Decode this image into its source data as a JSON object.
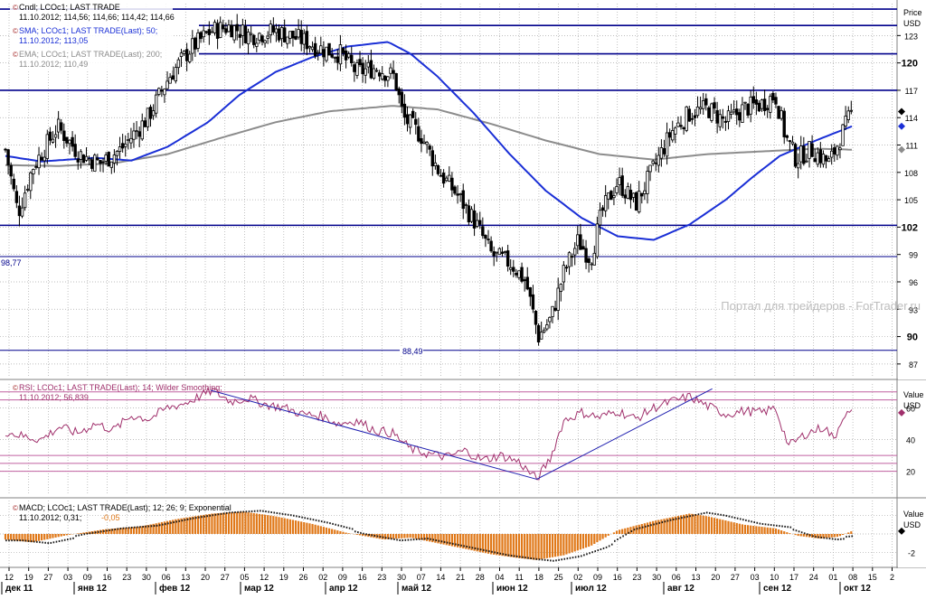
{
  "colors": {
    "background": "#ffffff",
    "grid": "#a8a8a8",
    "candle_up": "#000000",
    "candle_down": "#000000",
    "sma": "#1a2fd6",
    "ema": "#8c8c8c",
    "level_line": "#00008b",
    "rsi": "#a0306c",
    "rsi_level": "#c060a0",
    "rsi_trend": "#2020b0",
    "macd_hist": "#e07818",
    "macd_hist_dark": "#1a1a1a",
    "macd_signal": "#e07818",
    "watermark": "#bdbdbd"
  },
  "price_panel": {
    "legend_cndl": "Cndl; LCOc1; LAST TRADE",
    "legend_cndl_values": "11.10.2012; 114,56; 114,66; 114,42; 114,66",
    "legend_sma": "SMA; LCOc1; LAST TRADE(Last); 50;",
    "legend_sma_values": "11.10.2012; 113,05",
    "legend_ema": "EMA; LCOc1; LAST TRADE(Last); 200;",
    "legend_ema_values": "11.10.2012; 110,49",
    "axis_title": "Price",
    "axis_unit": "USD",
    "level_label_left": "98,77",
    "level_label_bottom": "88,49",
    "watermark": "Портал для трейдеров - ForTrader.ru"
  },
  "rsi_panel": {
    "legend": "RSI; LCOc1; LAST TRADE(Last); 14; Wilder Smoothing;",
    "legend_values": "11.10.2012; 56,839",
    "axis_title": "Value",
    "axis_unit": "USD",
    "ticks": [
      "60",
      "40",
      "20"
    ]
  },
  "macd_panel": {
    "legend": "MACD; LCOc1; LAST TRADE(Last); 12; 26; 9; Exponential",
    "legend_value_a": "11.10.2012; 0,31;",
    "legend_value_b": "-0,05",
    "axis_title": "Value",
    "axis_unit": "USD",
    "ticks": [
      "-2"
    ]
  },
  "chart_data": [
    {
      "type": "candlestick",
      "title": "LCOc1",
      "ylabel": "Price USD",
      "y_ticks": [
        87,
        90,
        93,
        96,
        99,
        102,
        105,
        108,
        111,
        114,
        117,
        120,
        123
      ],
      "y_ticks_bold": [
        90,
        102,
        120
      ],
      "ylim": [
        85.5,
        126.5
      ],
      "x_day_ticks": [
        "12",
        "19",
        "27",
        "03",
        "09",
        "16",
        "23",
        "30",
        "06",
        "13",
        "20",
        "27",
        "05",
        "12",
        "19",
        "26",
        "02",
        "09",
        "16",
        "23",
        "30",
        "07",
        "14",
        "21",
        "28",
        "04",
        "11",
        "18",
        "25",
        "02",
        "09",
        "16",
        "23",
        "30",
        "06",
        "13",
        "20",
        "27",
        "03",
        "10",
        "17",
        "24",
        "01",
        "08",
        "15",
        "2"
      ],
      "x_month_labels": [
        "дек 11",
        "янв 12",
        "фев 12",
        "мар 12",
        "апр 12",
        "май 12",
        "июн 12",
        "июл 12",
        "авг 12",
        "сен 12",
        "окт 12"
      ],
      "horizontal_levels": [
        125.9,
        124.1,
        121.0,
        117.0,
        102.2,
        98.77,
        88.49
      ],
      "close_anchors": [
        [
          0,
          110.5
        ],
        [
          14,
          103.5
        ],
        [
          30,
          108.5
        ],
        [
          58,
          113.0
        ],
        [
          82,
          110.0
        ],
        [
          105,
          109.0
        ],
        [
          128,
          110.5
        ],
        [
          158,
          114.0
        ],
        [
          182,
          118.5
        ],
        [
          205,
          121.5
        ],
        [
          228,
          123.5
        ],
        [
          250,
          124.0
        ],
        [
          272,
          123.0
        ],
        [
          300,
          123.5
        ],
        [
          330,
          122.5
        ],
        [
          352,
          121.5
        ],
        [
          372,
          121.0
        ],
        [
          390,
          119.0
        ],
        [
          412,
          119.5
        ],
        [
          432,
          118.5
        ],
        [
          442,
          114.0
        ],
        [
          462,
          112.0
        ],
        [
          482,
          108.0
        ],
        [
          502,
          105.5
        ],
        [
          522,
          102.5
        ],
        [
          540,
          99.0
        ],
        [
          562,
          98.0
        ],
        [
          578,
          96.0
        ],
        [
          592,
          90.0
        ],
        [
          606,
          92.0
        ],
        [
          620,
          97.0
        ],
        [
          636,
          100.5
        ],
        [
          650,
          98.5
        ],
        [
          662,
          103.5
        ],
        [
          680,
          107.0
        ],
        [
          700,
          104.5
        ],
        [
          720,
          108.5
        ],
        [
          740,
          112.5
        ],
        [
          760,
          114.5
        ],
        [
          780,
          115.0
        ],
        [
          800,
          113.5
        ],
        [
          820,
          115.0
        ],
        [
          840,
          115.5
        ],
        [
          855,
          116.5
        ],
        [
          866,
          112.0
        ],
        [
          878,
          109.5
        ],
        [
          895,
          110.5
        ],
        [
          915,
          109.0
        ],
        [
          928,
          112.0
        ],
        [
          940,
          114.6
        ]
      ],
      "sma50_anchors": [
        [
          0,
          109.8
        ],
        [
          40,
          109.2
        ],
        [
          100,
          109.6
        ],
        [
          140,
          109.3
        ],
        [
          180,
          110.8
        ],
        [
          225,
          113.5
        ],
        [
          260,
          116.5
        ],
        [
          300,
          119.0
        ],
        [
          340,
          120.6
        ],
        [
          380,
          121.8
        ],
        [
          425,
          122.3
        ],
        [
          450,
          121.0
        ],
        [
          480,
          118.5
        ],
        [
          520,
          114.5
        ],
        [
          560,
          110.0
        ],
        [
          600,
          106.0
        ],
        [
          640,
          103.0
        ],
        [
          680,
          101.0
        ],
        [
          720,
          100.6
        ],
        [
          760,
          102.3
        ],
        [
          800,
          105.0
        ],
        [
          830,
          107.5
        ],
        [
          860,
          109.8
        ],
        [
          900,
          111.5
        ],
        [
          940,
          113.05
        ]
      ],
      "ema200_anchors": [
        [
          0,
          108.8
        ],
        [
          60,
          108.7
        ],
        [
          120,
          109.0
        ],
        [
          180,
          110.0
        ],
        [
          240,
          111.8
        ],
        [
          300,
          113.5
        ],
        [
          360,
          114.7
        ],
        [
          430,
          115.3
        ],
        [
          480,
          114.9
        ],
        [
          540,
          113.3
        ],
        [
          600,
          111.5
        ],
        [
          660,
          110.0
        ],
        [
          720,
          109.4
        ],
        [
          780,
          110.0
        ],
        [
          840,
          110.3
        ],
        [
          900,
          110.6
        ],
        [
          940,
          110.49
        ]
      ]
    },
    {
      "type": "line",
      "title": "RSI 14",
      "ylim": [
        5,
        75
      ],
      "y_ticks": [
        20,
        40,
        60
      ],
      "levels": [
        70,
        65,
        30,
        25,
        20
      ],
      "series": [
        {
          "name": "RSI",
          "points": [
            [
              0,
              45
            ],
            [
              20,
              42
            ],
            [
              40,
              40
            ],
            [
              60,
              48
            ],
            [
              80,
              44
            ],
            [
              100,
              50
            ],
            [
              120,
              46
            ],
            [
              140,
              55
            ],
            [
              160,
              53
            ],
            [
              180,
              60
            ],
            [
              200,
              63
            ],
            [
              215,
              67
            ],
            [
              230,
              71
            ],
            [
              250,
              64
            ],
            [
              270,
              66
            ],
            [
              290,
              62
            ],
            [
              310,
              60
            ],
            [
              330,
              56
            ],
            [
              350,
              55
            ],
            [
              370,
              50
            ],
            [
              390,
              52
            ],
            [
              410,
              46
            ],
            [
              430,
              44
            ],
            [
              450,
              34
            ],
            [
              470,
              31
            ],
            [
              490,
              29
            ],
            [
              510,
              33
            ],
            [
              530,
              27
            ],
            [
              550,
              30
            ],
            [
              570,
              26
            ],
            [
              590,
              15
            ],
            [
              605,
              28
            ],
            [
              620,
              52
            ],
            [
              640,
              57
            ],
            [
              660,
              54
            ],
            [
              680,
              58
            ],
            [
              700,
              53
            ],
            [
              720,
              60
            ],
            [
              740,
              64
            ],
            [
              760,
              67
            ],
            [
              780,
              61
            ],
            [
              800,
              56
            ],
            [
              820,
              58
            ],
            [
              840,
              57
            ],
            [
              855,
              60
            ],
            [
              870,
              36
            ],
            [
              890,
              44
            ],
            [
              910,
              48
            ],
            [
              920,
              40
            ],
            [
              930,
              55
            ],
            [
              940,
              56.84
            ]
          ]
        }
      ],
      "trendlines": [
        [
          [
            228,
            71
          ],
          [
            590,
            15
          ]
        ],
        [
          [
            590,
            15
          ],
          [
            785,
            72
          ]
        ]
      ]
    },
    {
      "type": "bar",
      "title": "MACD 12 26 9",
      "ylim": [
        -3.6,
        3.6
      ],
      "y_ticks": [
        -2
      ],
      "macd_anchors": [
        [
          0,
          -0.6
        ],
        [
          30,
          -0.9
        ],
        [
          70,
          -0.1
        ],
        [
          110,
          0.5
        ],
        [
          150,
          0.8
        ],
        [
          190,
          1.6
        ],
        [
          230,
          2.2
        ],
        [
          265,
          2.4
        ],
        [
          300,
          1.9
        ],
        [
          340,
          1.1
        ],
        [
          380,
          0.1
        ],
        [
          420,
          -0.6
        ],
        [
          450,
          -0.4
        ],
        [
          500,
          -1.4
        ],
        [
          540,
          -2.2
        ],
        [
          570,
          -2.6
        ],
        [
          590,
          -2.8
        ],
        [
          620,
          -2.3
        ],
        [
          650,
          -1.3
        ],
        [
          680,
          0.4
        ],
        [
          720,
          1.4
        ],
        [
          760,
          2.2
        ],
        [
          780,
          1.9
        ],
        [
          820,
          1.0
        ],
        [
          855,
          0.6
        ],
        [
          880,
          -0.2
        ],
        [
          905,
          -0.5
        ],
        [
          925,
          -0.3
        ],
        [
          940,
          0.31
        ]
      ]
    }
  ]
}
